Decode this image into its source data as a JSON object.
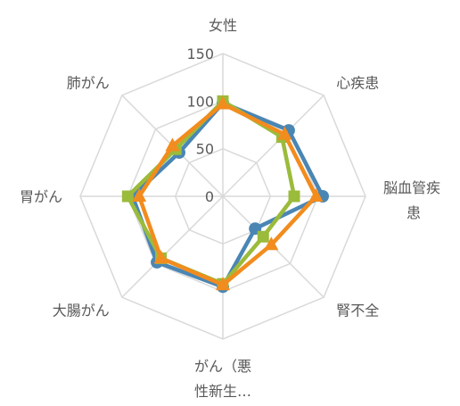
{
  "chart_data": {
    "type": "radar",
    "categories": [
      [
        "女性"
      ],
      [
        "心疾患"
      ],
      [
        "脳血管疾",
        "患"
      ],
      [
        "腎不全"
      ],
      [
        "がん（悪",
        "性新生…"
      ],
      [
        "大腸がん"
      ],
      [
        "胃がん"
      ],
      [
        "肺がん"
      ]
    ],
    "rlim": [
      0,
      150
    ],
    "ticks": [
      "0",
      "50",
      "100",
      "150"
    ],
    "tick_values": [
      0,
      50,
      100,
      150
    ],
    "grid": true,
    "legend": "none",
    "series": [
      {
        "color": "#4a86b4",
        "marker": "circle",
        "values": [
          98,
          98,
          105,
          48,
          95,
          98,
          95,
          65
        ]
      },
      {
        "color": "#9bbb3b",
        "marker": "square",
        "values": [
          100,
          88,
          75,
          60,
          92,
          92,
          100,
          70
        ]
      },
      {
        "color": "#f28c1e",
        "marker": "triangle",
        "values": [
          97,
          92,
          98,
          72,
          93,
          92,
          88,
          75
        ]
      }
    ]
  }
}
